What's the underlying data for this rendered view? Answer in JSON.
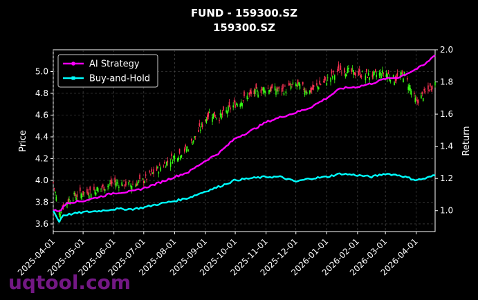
{
  "chart_data": {
    "type": "line",
    "title": "FUND - 159300.SZ",
    "subtitle": "159300.SZ",
    "ylabel_left": "Price",
    "ylabel_right": "Return",
    "ylim_left": [
      3.53,
      5.2
    ],
    "ylim_right": [
      0.87,
      2.0
    ],
    "yticks_left": [
      3.6,
      3.8,
      4.0,
      4.2,
      4.4,
      4.6,
      4.8,
      5.0
    ],
    "yticks_right": [
      1.0,
      1.2,
      1.4,
      1.6,
      1.8,
      2.0
    ],
    "x_range": [
      "2025-04-01",
      "2026-04-20"
    ],
    "x_ticks": [
      "2025-04-01",
      "2025-05-01",
      "2025-06-01",
      "2025-07-01",
      "2025-08-01",
      "2025-09-01",
      "2025-10-01",
      "2025-11-01",
      "2025-12-01",
      "2026-01-01",
      "2026-02-01",
      "2026-03-01",
      "2026-04-01"
    ],
    "grid": true,
    "legend_position": "top-left",
    "price_anchors": {
      "dates": [
        "2025-04-01",
        "2025-04-07",
        "2025-04-10",
        "2025-04-20",
        "2025-05-01",
        "2025-05-20",
        "2025-06-01",
        "2025-06-20",
        "2025-07-01",
        "2025-07-15",
        "2025-08-01",
        "2025-08-15",
        "2025-08-25",
        "2025-09-05",
        "2025-09-15",
        "2025-10-01",
        "2025-10-15",
        "2025-11-01",
        "2025-11-15",
        "2025-12-01",
        "2025-12-15",
        "2026-01-01",
        "2026-01-15",
        "2026-02-01",
        "2026-02-15",
        "2026-03-01",
        "2026-03-10",
        "2026-03-20",
        "2026-04-01",
        "2026-04-10",
        "2026-04-20"
      ],
      "values": [
        3.98,
        3.7,
        3.75,
        3.85,
        3.88,
        3.93,
        3.98,
        3.96,
        4.0,
        4.1,
        4.22,
        4.3,
        4.45,
        4.62,
        4.58,
        4.7,
        4.78,
        4.85,
        4.82,
        4.88,
        4.82,
        4.92,
        5.02,
        4.98,
        4.96,
        4.99,
        4.93,
        4.97,
        4.72,
        4.8,
        4.9
      ]
    },
    "series": [
      {
        "name": "AI Strategy",
        "color": "#ff00ff",
        "dates": [
          "2025-04-01",
          "2025-04-08",
          "2025-04-15",
          "2025-05-01",
          "2025-05-20",
          "2025-06-01",
          "2025-06-20",
          "2025-07-01",
          "2025-07-15",
          "2025-08-01",
          "2025-08-15",
          "2025-09-01",
          "2025-09-15",
          "2025-10-01",
          "2025-10-15",
          "2025-11-01",
          "2025-11-15",
          "2025-12-01",
          "2025-12-15",
          "2026-01-01",
          "2026-01-15",
          "2026-02-01",
          "2026-02-15",
          "2026-03-01",
          "2026-03-15",
          "2026-04-01",
          "2026-04-10",
          "2026-04-20"
        ],
        "values": [
          1.0,
          1.0,
          1.05,
          1.06,
          1.09,
          1.11,
          1.12,
          1.14,
          1.17,
          1.21,
          1.24,
          1.31,
          1.36,
          1.45,
          1.49,
          1.55,
          1.58,
          1.61,
          1.64,
          1.7,
          1.76,
          1.77,
          1.79,
          1.82,
          1.83,
          1.88,
          1.91,
          1.97
        ]
      },
      {
        "name": "Buy-and-Hold",
        "color": "#00ffff",
        "dates": [
          "2025-04-01",
          "2025-04-07",
          "2025-04-10",
          "2025-04-20",
          "2025-05-01",
          "2025-05-20",
          "2025-06-01",
          "2025-06-20",
          "2025-07-01",
          "2025-07-15",
          "2025-08-01",
          "2025-08-15",
          "2025-09-01",
          "2025-09-15",
          "2025-10-01",
          "2025-10-15",
          "2025-11-01",
          "2025-11-15",
          "2025-12-01",
          "2025-12-15",
          "2026-01-01",
          "2026-01-15",
          "2026-02-01",
          "2026-02-15",
          "2026-03-01",
          "2026-03-15",
          "2026-04-01",
          "2026-04-10",
          "2026-04-20"
        ],
        "values": [
          1.0,
          0.93,
          0.97,
          0.98,
          0.99,
          1.0,
          1.01,
          1.01,
          1.02,
          1.04,
          1.06,
          1.08,
          1.12,
          1.15,
          1.19,
          1.2,
          1.21,
          1.21,
          1.18,
          1.2,
          1.21,
          1.23,
          1.22,
          1.21,
          1.23,
          1.22,
          1.19,
          1.2,
          1.22
        ]
      }
    ],
    "candle_colors": {
      "up": "#39ff14",
      "down": "#ff3355"
    }
  },
  "watermark": "uqtool.com"
}
